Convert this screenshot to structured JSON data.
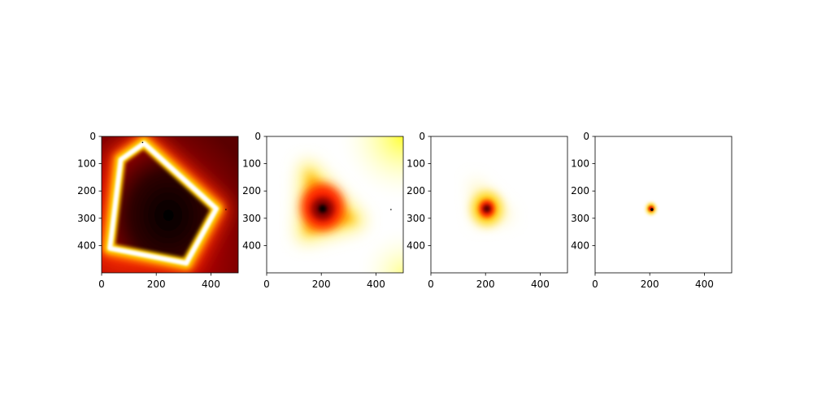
{
  "chart_data": [
    {
      "type": "heatmap",
      "colormap": "hot",
      "xlim": [
        0,
        500
      ],
      "ylim": [
        500,
        0
      ],
      "xticks": [
        0,
        200,
        400
      ],
      "yticks": [
        0,
        100,
        200,
        300,
        400
      ],
      "grid": false,
      "pattern": "pentagon-ring",
      "polygon": [
        [
          155,
          25
        ],
        [
          420,
          265
        ],
        [
          310,
          465
        ],
        [
          30,
          410
        ],
        [
          70,
          85
        ]
      ],
      "peak": [
        205,
        265
      ],
      "marker_points": [
        [
          150,
          22
        ],
        [
          455,
          268
        ]
      ]
    },
    {
      "type": "heatmap",
      "colormap": "hot",
      "xlim": [
        0,
        500
      ],
      "ylim": [
        500,
        0
      ],
      "xticks": [
        0,
        200,
        400
      ],
      "yticks": [
        0,
        100,
        200,
        300,
        400
      ],
      "grid": false,
      "pattern": "triangle-blob",
      "polygon": [
        [
          150,
          120
        ],
        [
          330,
          310
        ],
        [
          140,
          360
        ]
      ],
      "peak": [
        205,
        265
      ],
      "marker_points": [
        [
          455,
          268
        ]
      ]
    },
    {
      "type": "heatmap",
      "colormap": "hot",
      "xlim": [
        0,
        500
      ],
      "ylim": [
        500,
        0
      ],
      "xticks": [
        0,
        200,
        400
      ],
      "yticks": [
        0,
        100,
        200,
        300,
        400
      ],
      "grid": false,
      "pattern": "medium-blob",
      "polygon": [
        [
          150,
          150
        ],
        [
          300,
          300
        ],
        [
          170,
          320
        ]
      ],
      "peak": [
        205,
        265
      ],
      "marker_points": []
    },
    {
      "type": "heatmap",
      "colormap": "hot",
      "xlim": [
        0,
        500
      ],
      "ylim": [
        500,
        0
      ],
      "xticks": [
        0,
        200,
        400
      ],
      "yticks": [
        0,
        100,
        200,
        300,
        400
      ],
      "grid": false,
      "pattern": "small-dot",
      "polygon": [
        [
          190,
          240
        ],
        [
          230,
          280
        ],
        [
          200,
          290
        ]
      ],
      "peak": [
        205,
        265
      ],
      "marker_points": []
    }
  ]
}
